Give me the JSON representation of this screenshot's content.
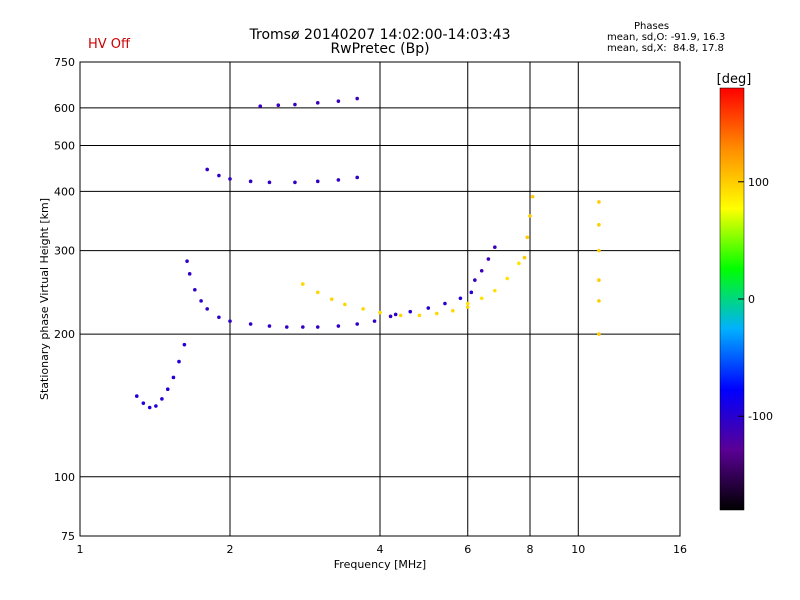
{
  "header": {
    "title_line1": "Tromsø 20140207 14:02:00-14:03:43",
    "title_line2": "RwPretec (Bp)",
    "hv_status": "HV Off",
    "phases_title": "Phases",
    "phases_o": "mean, sd,O: -91.9, 16.3",
    "phases_x": "mean, sd,X:  84.8, 17.8"
  },
  "colors": {
    "hv_status": "#cc0000",
    "colorbar_stops": [
      "#000000",
      "#5a0095",
      "#0000ff",
      "#00b0ff",
      "#00ff00",
      "#ffff00",
      "#ff8c00",
      "#ff0000"
    ]
  },
  "chart_data": {
    "type": "scatter",
    "title": "Tromsø 20140207 14:02:00-14:03:43",
    "subtitle": "RwPretec (Bp)",
    "xlabel": "Frequency [MHz]",
    "ylabel": "Stationary phase Virtual Height [km]",
    "xscale": "log",
    "yscale": "log",
    "xlim": [
      1,
      16
    ],
    "ylim": [
      75,
      750
    ],
    "xticks": [
      1,
      2,
      4,
      6,
      8,
      10,
      16
    ],
    "xtick_labels": [
      "1",
      "2",
      "4",
      "6",
      "8",
      "10",
      "16"
    ],
    "yticks": [
      75,
      100,
      200,
      300,
      400,
      500,
      600,
      750
    ],
    "ytick_labels": [
      "75",
      "100",
      "200",
      "300",
      "400",
      "500",
      "600",
      "750"
    ],
    "grid": true,
    "colorbar": {
      "label": "[deg]",
      "range": [
        -180,
        180
      ],
      "ticks": [
        -100,
        0,
        100
      ],
      "tick_labels": [
        "-100",
        "0",
        "100"
      ]
    },
    "traces": [
      {
        "x": [
          1.3,
          1.34,
          1.38,
          1.42,
          1.46,
          1.5,
          1.54,
          1.58,
          1.62
        ],
        "y": [
          148,
          143,
          140,
          141,
          146,
          153,
          162,
          175,
          190
        ],
        "phase": -95
      },
      {
        "x": [
          1.64,
          1.66,
          1.7,
          1.75,
          1.8,
          1.9,
          2.0,
          2.2,
          2.4,
          2.6,
          2.8,
          3.0,
          3.3,
          3.6,
          3.9,
          4.2
        ],
        "y": [
          285,
          268,
          248,
          235,
          226,
          217,
          213,
          210,
          208,
          207,
          207,
          207,
          208,
          210,
          213,
          218
        ],
        "phase": -105
      },
      {
        "x": [
          4.3,
          4.6,
          5.0,
          5.4,
          5.8,
          6.1
        ],
        "y": [
          220,
          223,
          227,
          232,
          238,
          245
        ],
        "phase": -100
      },
      {
        "x": [
          6.2,
          6.4,
          6.6,
          6.8
        ],
        "y": [
          260,
          272,
          288,
          305
        ],
        "phase": -110
      },
      {
        "x": [
          1.8,
          1.9,
          2.0,
          2.2,
          2.4,
          2.7,
          3.0,
          3.3,
          3.6
        ],
        "y": [
          445,
          432,
          425,
          420,
          418,
          418,
          420,
          423,
          428
        ],
        "phase": -105
      },
      {
        "x": [
          2.3,
          2.5,
          2.7,
          3.0,
          3.3,
          3.6
        ],
        "y": [
          605,
          608,
          610,
          615,
          620,
          628
        ],
        "phase": -110
      },
      {
        "x": [
          2.8,
          3.0,
          3.2,
          3.4,
          3.7,
          4.0,
          4.4,
          4.8,
          5.2,
          5.6,
          6.0
        ],
        "y": [
          255,
          245,
          237,
          231,
          226,
          222,
          219,
          219,
          221,
          224,
          228
        ],
        "phase": 95
      },
      {
        "x": [
          6.0,
          6.4,
          6.8,
          7.2,
          7.6
        ],
        "y": [
          232,
          238,
          247,
          262,
          282
        ],
        "phase": 90
      },
      {
        "x": [
          7.8,
          7.9,
          8.0,
          8.1
        ],
        "y": [
          290,
          320,
          355,
          390
        ],
        "phase": 100
      },
      {
        "x": [
          11.0,
          11.0,
          11.0,
          11.0,
          11.0,
          11.0
        ],
        "y": [
          200,
          235,
          260,
          300,
          340,
          380
        ],
        "phase": 100
      }
    ]
  }
}
